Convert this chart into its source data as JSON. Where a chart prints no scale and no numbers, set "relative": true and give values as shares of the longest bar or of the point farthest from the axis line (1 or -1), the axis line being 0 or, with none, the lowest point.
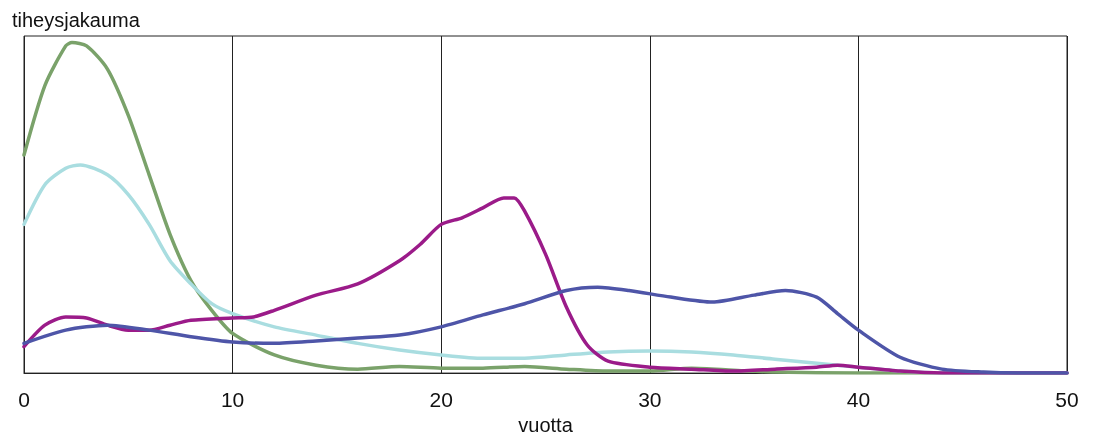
{
  "chart_data": {
    "type": "line",
    "relative": true,
    "ylabel": "tiheysjakauma",
    "xlabel": "vuotta",
    "xlim": [
      0,
      50
    ],
    "xticks": [
      0,
      10,
      20,
      30,
      40,
      50
    ],
    "grid": "x",
    "marker": "none",
    "line_style": "solid",
    "series": [
      {
        "color": "#7aa26a",
        "x": [
          0,
          1,
          2,
          2.3,
          3,
          4,
          5,
          6,
          7,
          8,
          9,
          10,
          12,
          14,
          16,
          18,
          20,
          22,
          24,
          26,
          28,
          30,
          32,
          34,
          36,
          40,
          50
        ],
        "values": [
          0.66,
          0.87,
          0.99,
          1,
          0.99,
          0.92,
          0.78,
          0.6,
          0.42,
          0.28,
          0.19,
          0.12,
          0.055,
          0.024,
          0.012,
          0.02,
          0.015,
          0.015,
          0.02,
          0.012,
          0.006,
          0.006,
          0.015,
          0.009,
          0.003,
          0,
          0
        ]
      },
      {
        "color": "#a9dde0",
        "x": [
          0,
          1,
          2,
          2.7,
          4,
          5,
          6,
          7,
          8,
          9,
          10,
          12,
          14,
          16,
          18,
          20,
          22,
          24,
          26,
          28,
          30,
          32,
          34,
          36,
          38,
          40,
          42,
          44,
          50
        ],
        "values": [
          0.45,
          0.57,
          0.62,
          0.63,
          0.6,
          0.54,
          0.45,
          0.34,
          0.27,
          0.21,
          0.18,
          0.14,
          0.115,
          0.09,
          0.07,
          0.055,
          0.045,
          0.045,
          0.055,
          0.064,
          0.067,
          0.064,
          0.055,
          0.042,
          0.03,
          0.018,
          0.006,
          0,
          0
        ]
      },
      {
        "color": "#9b1b89",
        "x": [
          0,
          1,
          2,
          3,
          4,
          5,
          6,
          7,
          8,
          10,
          11,
          12,
          14,
          16,
          18,
          19,
          20,
          21,
          22,
          23,
          23.5,
          24,
          25,
          26,
          27,
          28,
          30,
          32,
          34,
          36,
          38,
          39,
          40,
          42,
          44,
          50
        ],
        "values": [
          0.08,
          0.145,
          0.17,
          0.167,
          0.145,
          0.13,
          0.13,
          0.145,
          0.16,
          0.167,
          0.17,
          0.19,
          0.236,
          0.27,
          0.34,
          0.39,
          0.45,
          0.47,
          0.5,
          0.53,
          0.53,
          0.49,
          0.36,
          0.2,
          0.085,
          0.036,
          0.018,
          0.012,
          0.006,
          0.012,
          0.018,
          0.024,
          0.018,
          0.006,
          0,
          0
        ]
      },
      {
        "color": "#4e55a8",
        "x": [
          0,
          2,
          4,
          6,
          8,
          10,
          12,
          14,
          16,
          18,
          20,
          22,
          24,
          26,
          27.5,
          29,
          31,
          33,
          35,
          36.5,
          38,
          39,
          40,
          42,
          44,
          46,
          48,
          50
        ],
        "values": [
          0.09,
          0.13,
          0.145,
          0.13,
          0.11,
          0.094,
          0.09,
          0.097,
          0.106,
          0.115,
          0.14,
          0.176,
          0.21,
          0.25,
          0.26,
          0.25,
          0.23,
          0.215,
          0.236,
          0.25,
          0.23,
          0.18,
          0.13,
          0.048,
          0.012,
          0.003,
          0,
          0
        ]
      }
    ]
  }
}
